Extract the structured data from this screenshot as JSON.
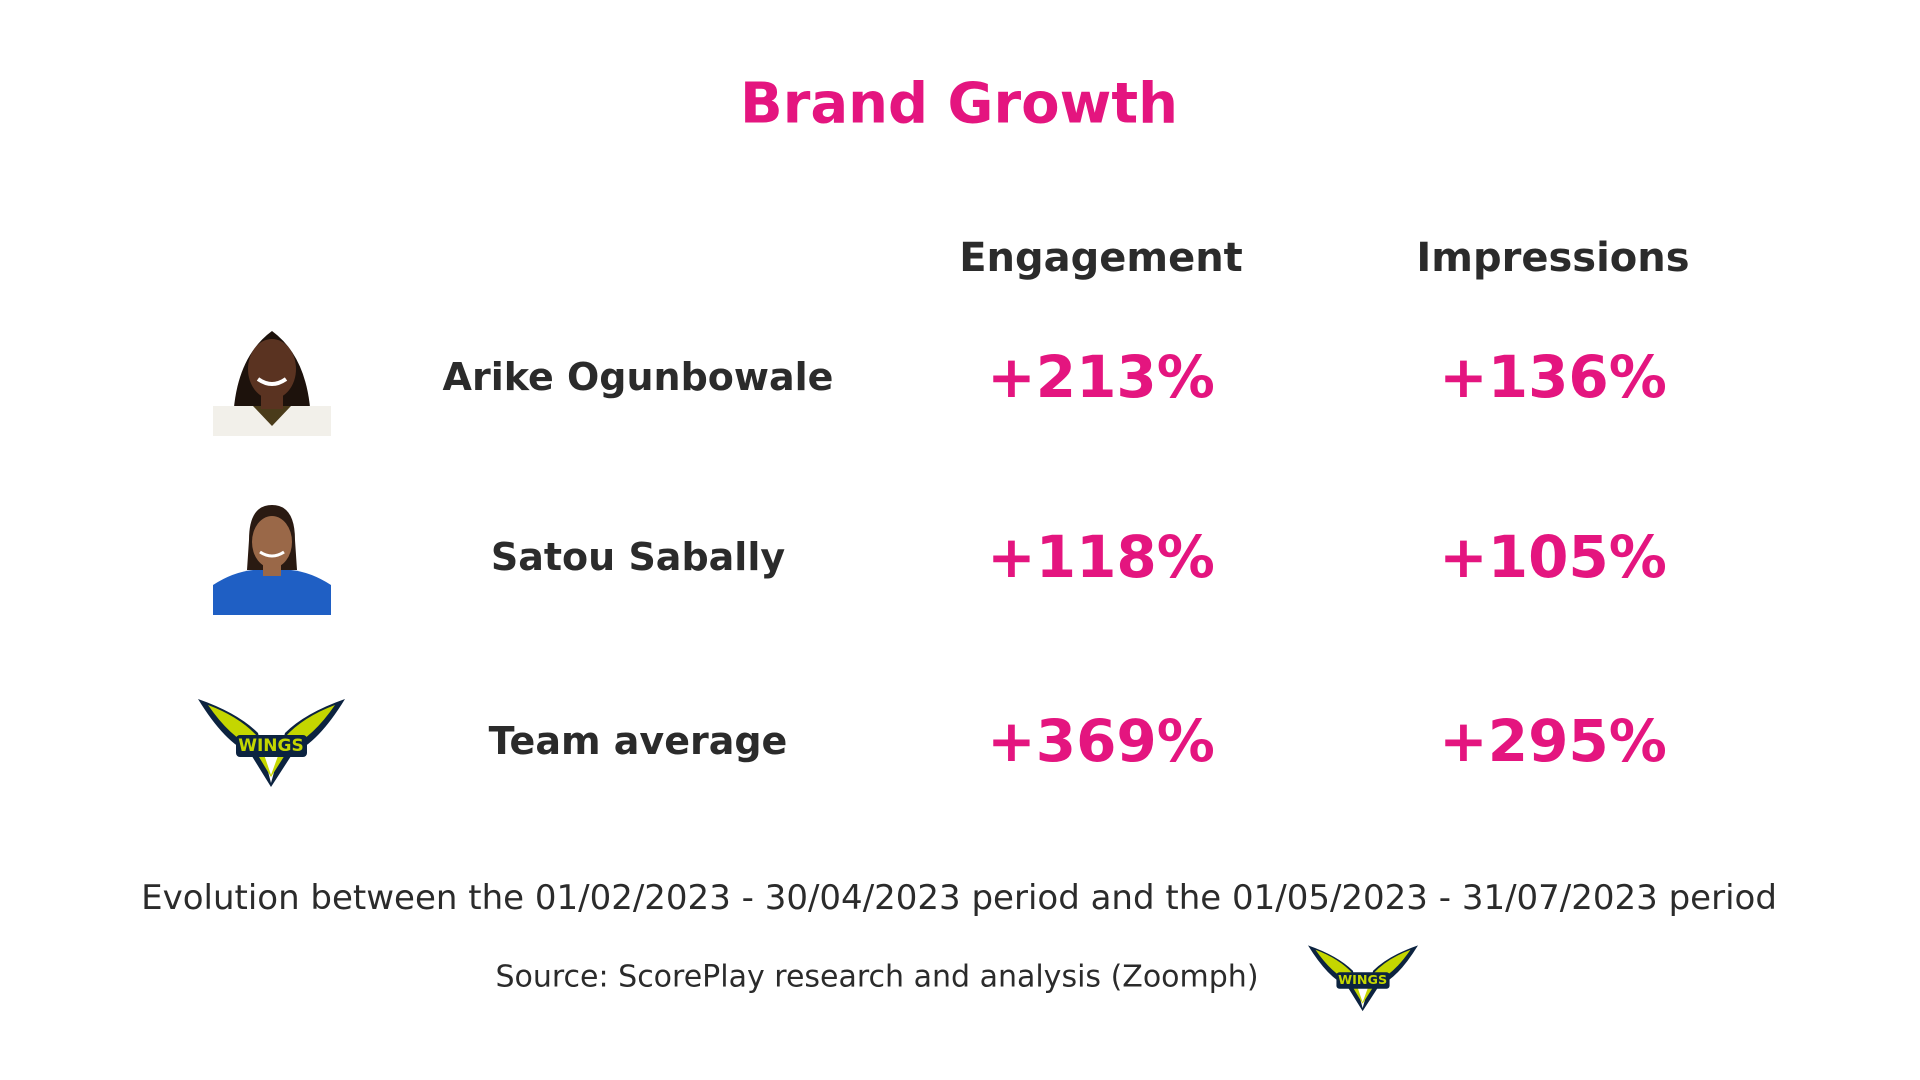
{
  "header": {
    "title": "Brand Growth"
  },
  "table": {
    "columns": [
      "Engagement",
      "Impressions"
    ],
    "rows": [
      {
        "name": "Arike Ogunbowale",
        "engagement": "+213%",
        "impressions": "+136%"
      },
      {
        "name": "Satou Sabally",
        "engagement": "+118%",
        "impressions": "+105%"
      },
      {
        "name": "Team average",
        "engagement": "+369%",
        "impressions": "+295%"
      }
    ]
  },
  "footer": {
    "note": "Evolution between the 01/02/2023 - 30/04/2023 period and the 01/05/2023 - 31/07/2023 period",
    "source": "Source: ScorePlay research and analysis (Zoomph)"
  }
}
